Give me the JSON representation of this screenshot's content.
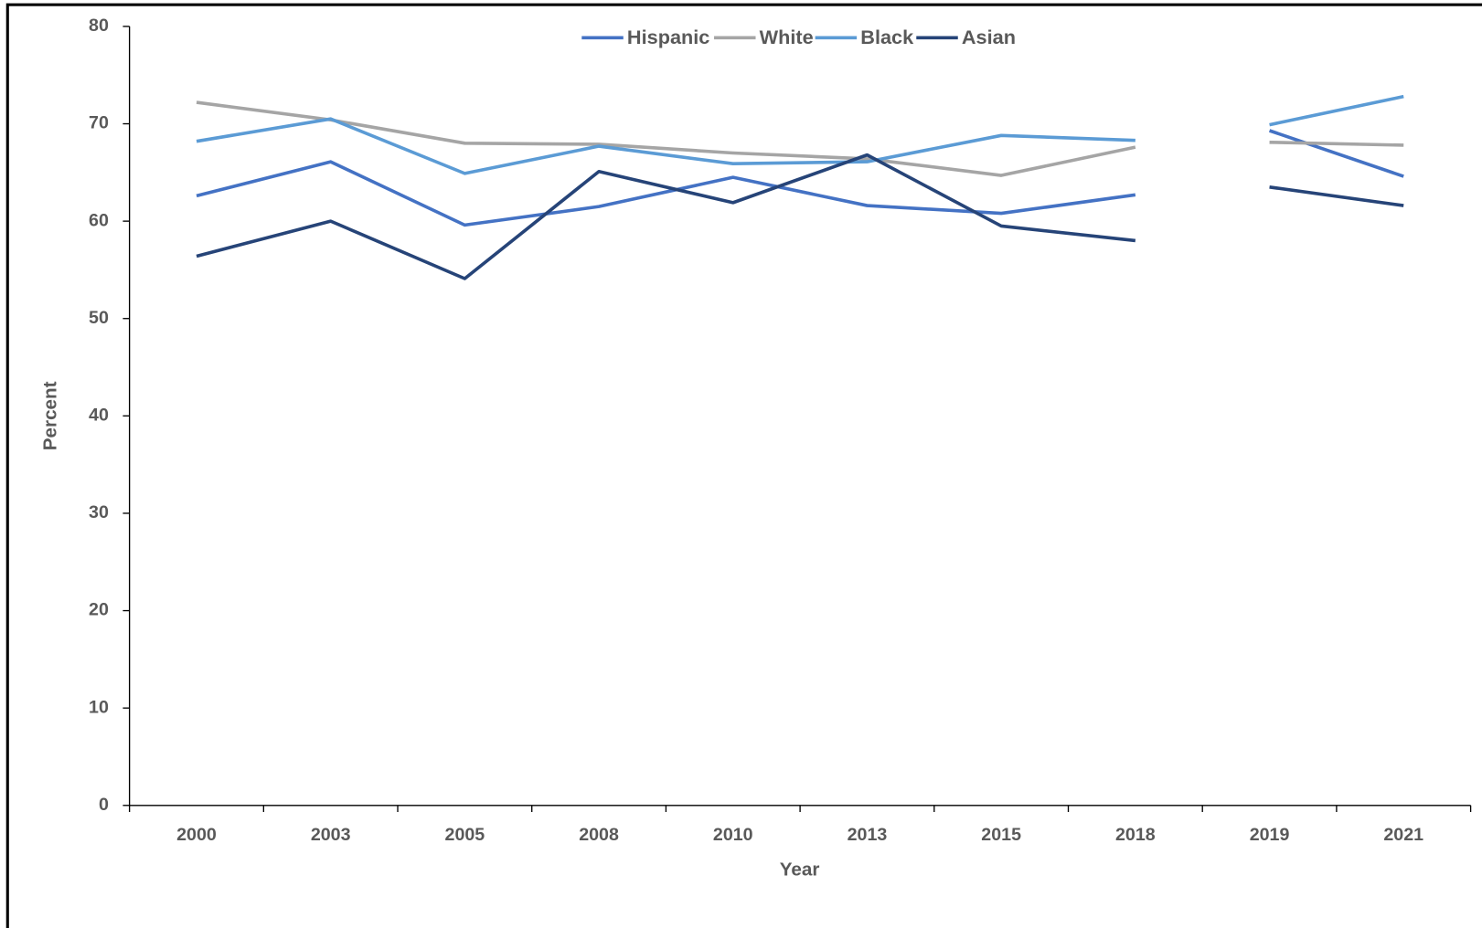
{
  "chart_data": {
    "type": "line",
    "x_label": "Year",
    "y_label": "Percent",
    "categories": [
      "2000",
      "2003",
      "2005",
      "2008",
      "2010",
      "2013",
      "2015",
      "2018",
      "2019",
      "2021"
    ],
    "break_after": [
      "2018"
    ],
    "series": [
      {
        "name": "Hispanic",
        "color": "#4472c4",
        "values": [
          62.6,
          66.1,
          59.6,
          61.5,
          64.5,
          61.6,
          60.8,
          62.7,
          69.3,
          64.6
        ]
      },
      {
        "name": "White",
        "color": "#a5a5a5",
        "values": [
          72.2,
          70.4,
          68.0,
          67.9,
          67.0,
          66.4,
          64.7,
          67.6,
          68.1,
          67.8
        ]
      },
      {
        "name": "Black",
        "color": "#5b9bd5",
        "values": [
          68.2,
          70.5,
          64.9,
          67.7,
          65.9,
          66.1,
          68.8,
          68.3,
          69.9,
          72.8
        ]
      },
      {
        "name": "Asian",
        "color": "#264478",
        "values": [
          56.4,
          60.0,
          54.1,
          65.1,
          61.9,
          66.8,
          59.5,
          58.0,
          63.5,
          61.6
        ]
      }
    ],
    "ylim": [
      0,
      80
    ],
    "yticks": [
      0,
      10,
      20,
      30,
      40,
      50,
      60,
      70,
      80
    ],
    "grid": false,
    "legend": "top"
  }
}
